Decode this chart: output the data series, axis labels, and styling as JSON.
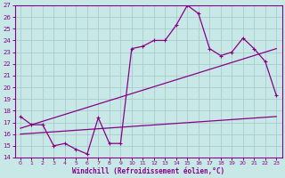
{
  "xlabel": "Windchill (Refroidissement éolien,°C)",
  "xlim": [
    -0.5,
    23.5
  ],
  "ylim": [
    14,
    27
  ],
  "yticks": [
    14,
    15,
    16,
    17,
    18,
    19,
    20,
    21,
    22,
    23,
    24,
    25,
    26,
    27
  ],
  "xticks": [
    0,
    1,
    2,
    3,
    4,
    5,
    6,
    7,
    8,
    9,
    10,
    11,
    12,
    13,
    14,
    15,
    16,
    17,
    18,
    19,
    20,
    21,
    22,
    23
  ],
  "bg_color": "#c8e8e8",
  "line_color": "#880088",
  "grid_color": "#b0d0d0",
  "line1_x": [
    0,
    1,
    2,
    3,
    4,
    5,
    6,
    7,
    8,
    9,
    10,
    11,
    12,
    13,
    14,
    15,
    16,
    17,
    18,
    19,
    20,
    21,
    22,
    23
  ],
  "line1_y": [
    17.5,
    16.8,
    16.8,
    15.0,
    15.2,
    14.7,
    14.3,
    17.4,
    15.2,
    15.2,
    23.3,
    23.5,
    24.0,
    24.0,
    25.3,
    27.0,
    26.3,
    23.3,
    22.7,
    23.0,
    24.2,
    23.3,
    22.2,
    19.3
  ],
  "line2_x": [
    0,
    23
  ],
  "line2_y": [
    16.5,
    23.3
  ],
  "line3_x": [
    0,
    23
  ],
  "line3_y": [
    16.0,
    17.5
  ]
}
